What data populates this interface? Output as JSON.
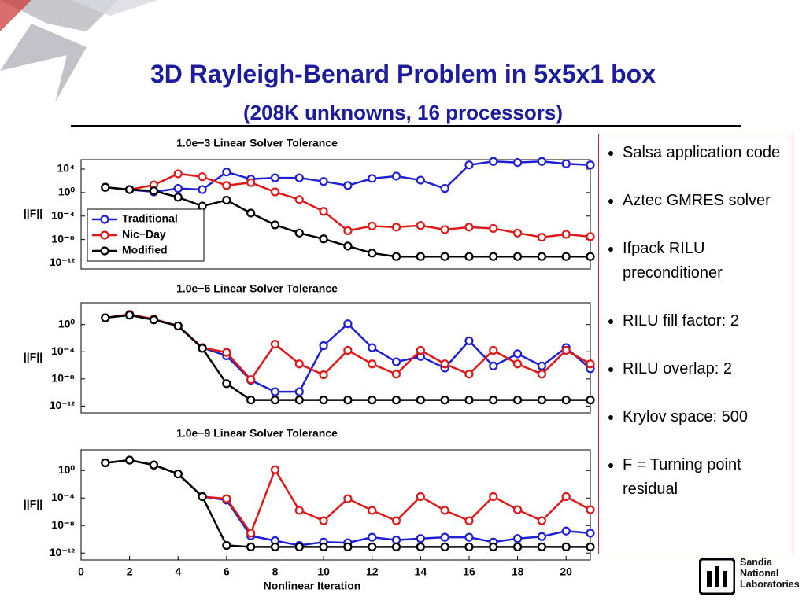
{
  "title": "3D Rayleigh-Benard Problem in 5x5x1 box",
  "subtitle": "(208K unknowns, 16 processors)",
  "chart_data": [
    {
      "type": "line",
      "title": "1.0e−3 Linear Solver Tolerance",
      "ylabel": "||F||",
      "log_y": true,
      "legend": "lower left",
      "x": [
        1,
        2,
        3,
        4,
        5,
        6,
        7,
        8,
        9,
        10,
        11,
        12,
        13,
        14,
        15,
        16,
        17,
        18,
        19,
        20,
        21
      ],
      "xlim": [
        0,
        21
      ],
      "ylim": [
        1e-13,
        400000.0
      ],
      "yticks": [
        {
          "value": 10000.0,
          "label": "10⁴"
        },
        {
          "value": 1,
          "label": "10⁰"
        },
        {
          "value": 0.0001,
          "label": "10⁻⁴"
        },
        {
          "value": 1e-08,
          "label": "10⁻⁸"
        },
        {
          "value": 1e-12,
          "label": "10⁻¹²"
        }
      ],
      "series": [
        {
          "name": "Traditional",
          "color": "#1f1fd6",
          "values": [
            7.9,
            3.2,
            1.3,
            5,
            3.2,
            3200,
            200,
            320,
            320,
            79,
            16,
            250,
            630,
            130,
            5,
            50000.0,
            200000.0,
            130000.0,
            200000.0,
            79000.0,
            50000.0
          ]
        },
        {
          "name": "Nic−Day",
          "color": "#e01818",
          "values": [
            7.9,
            3.2,
            20,
            1600,
            500,
            16,
            50,
            1.3,
            0.063,
            0.00063,
            3.2e-07,
            2e-06,
            1.3e-06,
            2.5e-06,
            5e-07,
            1.3e-06,
            7.9e-07,
            1.3e-07,
            2.5e-08,
            7.9e-08,
            3.2e-08
          ]
        },
        {
          "name": "Modified",
          "color": "#000000",
          "values": [
            7.9,
            3.2,
            2,
            0.16,
            0.005,
            0.05,
            0.00032,
            3.2e-06,
            1.3e-07,
            1.3e-08,
            7.9e-10,
            5e-11,
            1.3e-11,
            1.3e-11,
            1.3e-11,
            1.3e-11,
            1.3e-11,
            1.3e-11,
            1.3e-11,
            1.3e-11,
            1.3e-11
          ]
        }
      ]
    },
    {
      "type": "line",
      "title": "1.0e−6 Linear Solver Tolerance",
      "ylabel": "||F||",
      "log_y": true,
      "x": [
        1,
        2,
        3,
        4,
        5,
        6,
        7,
        8,
        9,
        10,
        11,
        12,
        13,
        14,
        15,
        16,
        17,
        18,
        19,
        20,
        21
      ],
      "xlim": [
        0,
        21
      ],
      "ylim": [
        1e-13,
        1600.0
      ],
      "yticks": [
        {
          "value": 1,
          "label": "10⁰"
        },
        {
          "value": 0.0001,
          "label": "10⁻⁴"
        },
        {
          "value": 1e-08,
          "label": "10⁻⁸"
        },
        {
          "value": 1e-12,
          "label": "10⁻¹²"
        }
      ],
      "series": [
        {
          "color": "#1f1fd6",
          "values": [
            10,
            25,
            5,
            0.63,
            0.0004,
            2.5e-05,
            6.3e-09,
            1.3e-10,
            1.3e-10,
            0.00079,
            1.3,
            0.0004,
            3.2e-06,
            2e-05,
            4e-07,
            0.004,
            7.9e-07,
            5e-05,
            7.9e-07,
            0.0004,
            3.2e-07
          ]
        },
        {
          "color": "#e01818",
          "values": [
            10,
            32,
            6.3,
            0.63,
            0.0004,
            7.9e-05,
            7.9e-09,
            0.0013,
            1.6e-06,
            4e-08,
            0.00016,
            1.6e-06,
            5e-08,
            0.00016,
            1.6e-06,
            5e-08,
            0.00016,
            1.6e-06,
            5e-08,
            0.00016,
            1.6e-06
          ]
        },
        {
          "color": "#000000",
          "values": [
            10,
            25,
            5,
            0.63,
            0.00032,
            2e-09,
            7.9e-12,
            7.9e-12,
            7.9e-12,
            7.9e-12,
            7.9e-12,
            7.9e-12,
            7.9e-12,
            7.9e-12,
            7.9e-12,
            7.9e-12,
            7.9e-12,
            7.9e-12,
            7.9e-12,
            7.9e-12,
            7.9e-12
          ]
        }
      ]
    },
    {
      "type": "line",
      "title": "1.0e−9 Linear Solver Tolerance",
      "ylabel": "||F||",
      "xlabel": "Nonlinear Iteration",
      "log_y": true,
      "x": [
        1,
        2,
        3,
        4,
        5,
        6,
        7,
        8,
        9,
        10,
        11,
        12,
        13,
        14,
        15,
        16,
        17,
        18,
        19,
        20,
        21
      ],
      "xlim": [
        0,
        21
      ],
      "ylim": [
        1e-13,
        1000.0
      ],
      "xticks": [
        0,
        2,
        4,
        6,
        8,
        10,
        12,
        14,
        16,
        18,
        20
      ],
      "yticks": [
        {
          "value": 1,
          "label": "10⁰"
        },
        {
          "value": 0.0001,
          "label": "10⁻⁴"
        },
        {
          "value": 1e-08,
          "label": "10⁻⁸"
        },
        {
          "value": 1e-12,
          "label": "10⁻¹²"
        }
      ],
      "series": [
        {
          "color": "#1f1fd6",
          "values": [
            13,
            32,
            6.3,
            0.32,
            0.00016,
            5e-05,
            3.2e-10,
            6.3e-11,
            1.3e-11,
            4e-11,
            3.2e-11,
            2e-10,
            7.9e-11,
            1.3e-10,
            2e-10,
            2e-10,
            4e-11,
            1.3e-10,
            2.5e-10,
            1.6e-09,
            7.9e-10
          ]
        },
        {
          "color": "#e01818",
          "values": [
            13,
            32,
            6.3,
            0.32,
            0.00016,
            7.9e-05,
            7.9e-10,
            1.3,
            1.6e-06,
            5e-08,
            7.9e-05,
            1.6e-06,
            5e-08,
            0.00016,
            1.6e-06,
            5e-08,
            0.00016,
            2e-06,
            5e-08,
            0.00016,
            2e-06
          ]
        },
        {
          "color": "#000000",
          "values": [
            13,
            32,
            6.3,
            0.32,
            0.00016,
            1.3e-11,
            7.9e-12,
            7.9e-12,
            7.9e-12,
            7.9e-12,
            7.9e-12,
            7.9e-12,
            7.9e-12,
            7.9e-12,
            7.9e-12,
            7.9e-12,
            7.9e-12,
            7.9e-12,
            7.9e-12,
            7.9e-12,
            7.9e-12
          ]
        }
      ]
    }
  ],
  "bullets": [
    "Salsa application code",
    "Aztec GMRES solver",
    "Ifpack RILU preconditioner",
    "RILU fill factor:  2",
    "RILU overlap: 2",
    "Krylov space: 500",
    "F = Turning point residual"
  ],
  "logo": {
    "lines": [
      "Sandia",
      "National",
      "Laboratories"
    ]
  }
}
